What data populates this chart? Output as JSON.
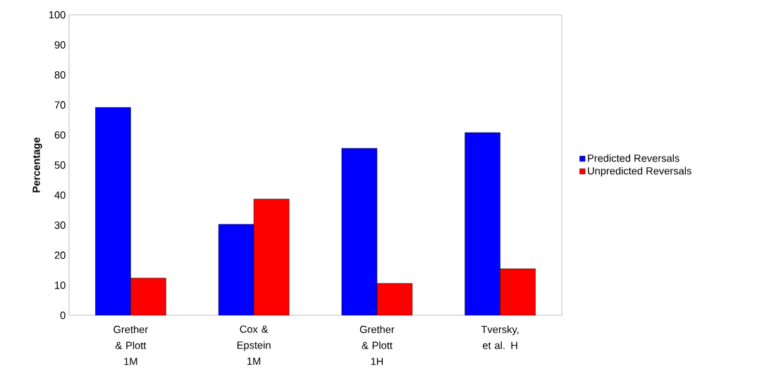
{
  "chart_data": {
    "type": "bar",
    "ylabel": "Percentage",
    "categories": [
      "Grether & Plott 1M",
      "Cox & Epstein 1M",
      "Grether & Plott 1H",
      "Tversky, et al. H"
    ],
    "series": [
      {
        "name": "Predicted Reversals",
        "color": "#0000ff",
        "values": [
          69.2,
          30.3,
          55.6,
          60.8
        ]
      },
      {
        "name": "Unpredicted Reversals",
        "color": "#ff0000",
        "values": [
          12.4,
          38.7,
          10.6,
          15.5
        ]
      }
    ],
    "ylim": [
      0,
      100
    ],
    "yticks": [
      0,
      10,
      20,
      30,
      40,
      50,
      60,
      70,
      80,
      90,
      100
    ],
    "grid": false,
    "legend": "right"
  }
}
